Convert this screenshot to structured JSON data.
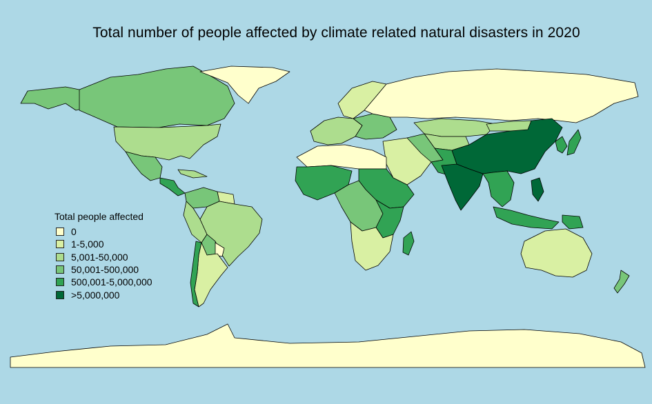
{
  "title": "Total number of people affected by climate related natural disasters in 2020",
  "legend": {
    "title": "Total people affected",
    "items": [
      {
        "label": "0",
        "color": "#ffffcc"
      },
      {
        "label": "1-5,000",
        "color": "#d9f0a3"
      },
      {
        "label": "5,001-50,000",
        "color": "#addd8e"
      },
      {
        "label": "50,001-500,000",
        "color": "#78c679"
      },
      {
        "label": "500,001-5,000,000",
        "color": "#31a354"
      },
      {
        "label": ">5,000,000",
        "color": "#006837"
      }
    ]
  },
  "colors": {
    "ocean": "#add8e6",
    "border": "#000000"
  }
}
